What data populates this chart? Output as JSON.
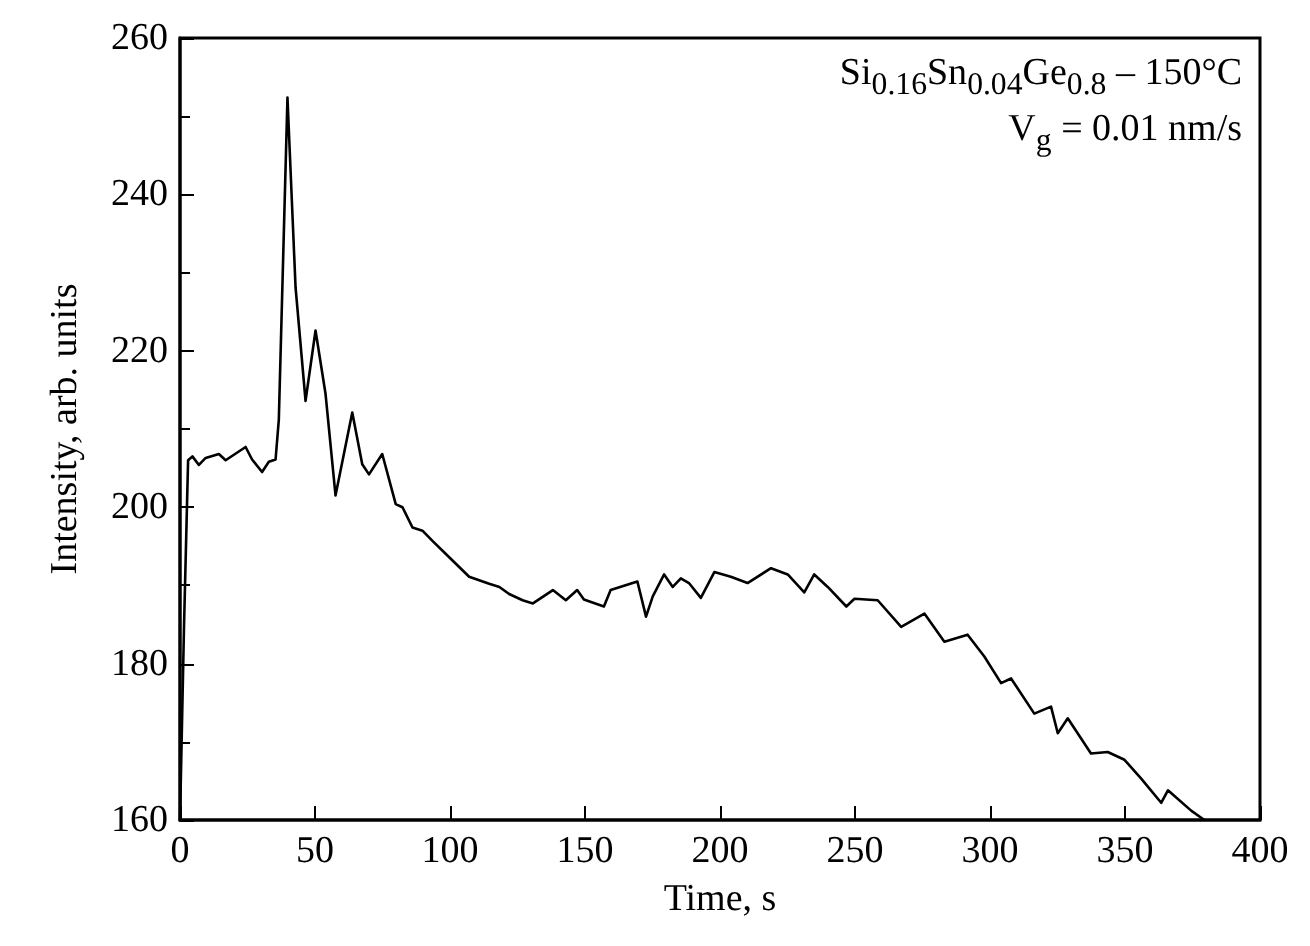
{
  "chart_data": {
    "type": "line",
    "xlabel": "Time, s",
    "ylabel": "Intensity, arb. units",
    "annotations": [
      "Si$_{0.16}$Sn$_{0.04}$Ge$_{0.8}$ – 150°C",
      "V$_{g}$ = 0.01 nm/s"
    ],
    "series": [
      {
        "color": "#000000",
        "x": [
          0,
          1.5,
          3,
          4.6,
          7,
          9.5,
          14.4,
          16.9,
          24.3,
          26.7,
          30.4,
          32.9,
          35.4,
          36.6,
          39.8,
          42.8,
          46.5,
          50.2,
          53.9,
          57.6,
          63.8,
          67.5,
          70,
          74.9,
          79.9,
          82.4,
          86.1,
          89.8,
          93.5,
          99.7,
          107.1,
          114.5,
          118.3,
          121.9,
          126.9,
          130.7,
          138.1,
          142.9,
          147.1,
          149.6,
          157,
          159.5,
          169.4,
          172.6,
          175.1,
          179.3,
          182.5,
          185.5,
          188.5,
          192.9,
          197.9,
          204,
          210.2,
          218.9,
          225.1,
          231.2,
          234.9,
          239.9,
          246.8,
          249.8,
          258.4,
          267.1,
          275.7,
          283.1,
          291.7,
          297.9,
          304.1,
          307.8,
          316.4,
          322.6,
          325.1,
          328.8,
          337.4,
          343.6,
          349.8,
          356,
          363.4,
          365.9,
          374.5,
          379.4
        ],
        "values": [
          160,
          185,
          206,
          206.5,
          205.4,
          206.3,
          206.8,
          206,
          207.7,
          206.1,
          204.5,
          205.8,
          206.1,
          211.2,
          252.4,
          228.1,
          213.6,
          222.6,
          214.5,
          201.5,
          212.1,
          205.5,
          204.2,
          206.8,
          200.4,
          200,
          197.4,
          197,
          195.7,
          193.6,
          191.1,
          190.2,
          189.8,
          188.9,
          188.1,
          187.7,
          189.4,
          188.1,
          189.4,
          188.2,
          187.3,
          189.4,
          190.5,
          186,
          188.6,
          191.4,
          189.8,
          190.9,
          190.3,
          188.4,
          191.7,
          191.1,
          190.3,
          192.2,
          191.4,
          189.1,
          191.4,
          189.8,
          187.3,
          188.3,
          188.1,
          184.7,
          186.4,
          182.8,
          183.7,
          180.9,
          177.5,
          178.1,
          173.6,
          174.5,
          171.1,
          173,
          168.5,
          168.7,
          167.7,
          165.3,
          162.2,
          163.8,
          161.2,
          160
        ]
      }
    ],
    "xlim": [
      0,
      400
    ],
    "xticks": [
      0,
      50,
      100,
      150,
      200,
      250,
      300,
      350,
      400
    ],
    "ylim": [
      160,
      260
    ],
    "yticks": [
      160,
      180,
      200,
      220,
      240,
      260
    ],
    "grid": false,
    "marker": "none",
    "line_style": "solid"
  }
}
